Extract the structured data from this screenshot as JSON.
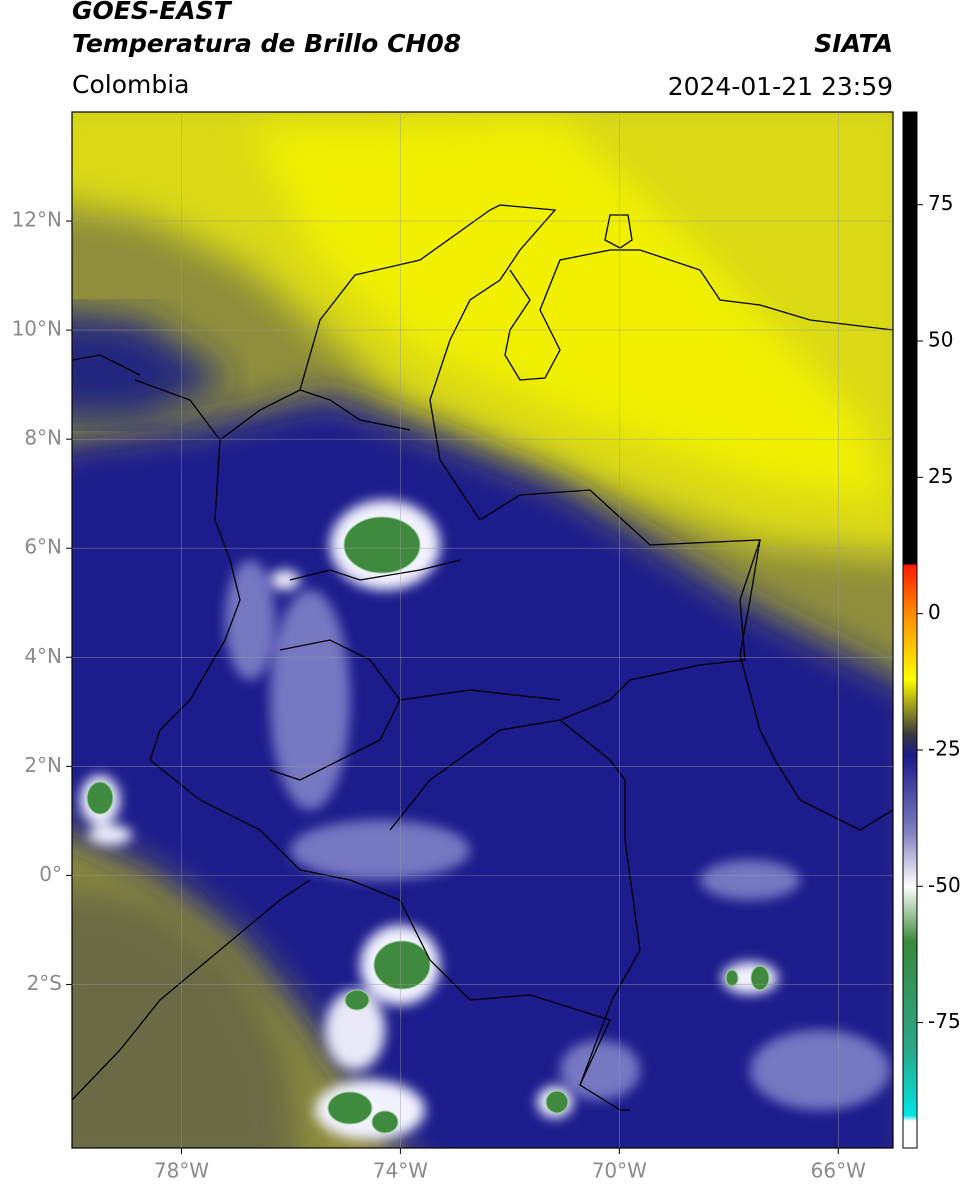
{
  "header": {
    "title": "GOES-EAST",
    "subtitle": "Temperatura de Brillo CH08",
    "region": "Colombia",
    "source": "SIATA",
    "datetime": "2024-01-21 23:59"
  },
  "map": {
    "xlim": [
      -80,
      -65
    ],
    "ylim": [
      -5,
      14
    ],
    "xticks": [
      {
        "value": -78,
        "label": "78°W"
      },
      {
        "value": -74,
        "label": "74°W"
      },
      {
        "value": -70,
        "label": "70°W"
      },
      {
        "value": -66,
        "label": "66°W"
      }
    ],
    "yticks": [
      {
        "value": 12,
        "label": "12°N"
      },
      {
        "value": 10,
        "label": "10°N"
      },
      {
        "value": 8,
        "label": "8°N"
      },
      {
        "value": 6,
        "label": "6°N"
      },
      {
        "value": 4,
        "label": "4°N"
      },
      {
        "value": 2,
        "label": "2°N"
      },
      {
        "value": 0,
        "label": "0°"
      },
      {
        "value": -2,
        "label": "2°S"
      }
    ],
    "grid": true
  },
  "colorbar": {
    "lim": [
      -98,
      92
    ],
    "ticks": [
      75,
      50,
      25,
      0,
      -25,
      -50,
      -75
    ],
    "stops": [
      {
        "value": 92,
        "color": "#000000"
      },
      {
        "value": 9,
        "color": "#000000"
      },
      {
        "value": 9,
        "color": "#ff1a00"
      },
      {
        "value": 0,
        "color": "#ff8c00"
      },
      {
        "value": -12,
        "color": "#ffff00"
      },
      {
        "value": -22,
        "color": "#3a3a3a"
      },
      {
        "value": -26,
        "color": "#1a1a8c"
      },
      {
        "value": -40,
        "color": "#8080c0"
      },
      {
        "value": -50,
        "color": "#ffffff"
      },
      {
        "value": -60,
        "color": "#3a8a3a"
      },
      {
        "value": -80,
        "color": "#2aa88a"
      },
      {
        "value": -92,
        "color": "#00e5e5"
      },
      {
        "value": -93,
        "color": "#ffffff"
      },
      {
        "value": -98,
        "color": "#ffffff"
      }
    ]
  }
}
